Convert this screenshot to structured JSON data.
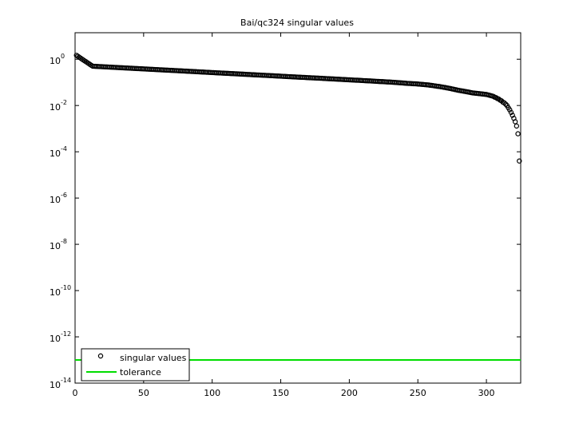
{
  "chart_data": {
    "type": "scatter",
    "title": "Bai/qc324 singular values",
    "xlim": [
      0,
      325
    ],
    "xticks": [
      0,
      50,
      100,
      150,
      200,
      250,
      300
    ],
    "ylim": [
      1e-14,
      14
    ],
    "yscale": "log",
    "yticks": [
      {
        "value": 1e-14,
        "label": "10^-14"
      },
      {
        "value": 1e-12,
        "label": "10^-12"
      },
      {
        "value": 1e-10,
        "label": "10^-10"
      },
      {
        "value": 1e-08,
        "label": "10^-8"
      },
      {
        "value": 1e-06,
        "label": "10^-6"
      },
      {
        "value": 0.0001,
        "label": "10^-4"
      },
      {
        "value": 0.01,
        "label": "10^-2"
      },
      {
        "value": 1,
        "label": "10^0"
      }
    ],
    "legend": "lower left",
    "series": [
      {
        "name": "singular values",
        "color": "#000000",
        "marker": "circle",
        "x": [
          1,
          2,
          3,
          4,
          5,
          6,
          7,
          8,
          9,
          10,
          11,
          12,
          13,
          14,
          15,
          16,
          17,
          18,
          19,
          20,
          21,
          22,
          23,
          24,
          25,
          26,
          27,
          28,
          29,
          30,
          31,
          32,
          33,
          34,
          35,
          36,
          37,
          38,
          39,
          40,
          41,
          42,
          43,
          44,
          45,
          46,
          47,
          48,
          49,
          50,
          51,
          52,
          53,
          54,
          55,
          56,
          57,
          58,
          59,
          60,
          61,
          62,
          63,
          64,
          65,
          66,
          67,
          68,
          69,
          70,
          71,
          72,
          73,
          74,
          75,
          76,
          77,
          78,
          79,
          80,
          81,
          82,
          83,
          84,
          85,
          86,
          87,
          88,
          89,
          90,
          91,
          92,
          93,
          94,
          95,
          96,
          97,
          98,
          99,
          100,
          101,
          102,
          103,
          104,
          105,
          106,
          107,
          108,
          109,
          110,
          111,
          112,
          113,
          114,
          115,
          116,
          117,
          118,
          119,
          120,
          121,
          122,
          123,
          124,
          125,
          126,
          127,
          128,
          129,
          130,
          131,
          132,
          133,
          134,
          135,
          136,
          137,
          138,
          139,
          140,
          141,
          142,
          143,
          144,
          145,
          146,
          147,
          148,
          149,
          150,
          151,
          152,
          153,
          154,
          155,
          156,
          157,
          158,
          159,
          160,
          161,
          162,
          163,
          164,
          165,
          166,
          167,
          168,
          169,
          170,
          171,
          172,
          173,
          174,
          175,
          176,
          177,
          178,
          179,
          180,
          181,
          182,
          183,
          184,
          185,
          186,
          187,
          188,
          189,
          190,
          191,
          192,
          193,
          194,
          195,
          196,
          197,
          198,
          199,
          200,
          201,
          202,
          203,
          204,
          205,
          206,
          207,
          208,
          209,
          210,
          211,
          212,
          213,
          214,
          215,
          216,
          217,
          218,
          219,
          220,
          221,
          222,
          223,
          224,
          225,
          226,
          227,
          228,
          229,
          230,
          231,
          232,
          233,
          234,
          235,
          236,
          237,
          238,
          239,
          240,
          241,
          242,
          243,
          244,
          245,
          246,
          247,
          248,
          249,
          250,
          251,
          252,
          253,
          254,
          255,
          256,
          257,
          258,
          259,
          260,
          261,
          262,
          263,
          264,
          265,
          266,
          267,
          268,
          269,
          270,
          271,
          272,
          273,
          274,
          275,
          276,
          277,
          278,
          279,
          280,
          281,
          282,
          283,
          284,
          285,
          286,
          287,
          288,
          289,
          290,
          291,
          292,
          293,
          294,
          295,
          296,
          297,
          298,
          299,
          300,
          301,
          302,
          303,
          304,
          305,
          306,
          307,
          308,
          309,
          310,
          311,
          312,
          313,
          314,
          315,
          316,
          317,
          318,
          319,
          320,
          321,
          322,
          323,
          324
        ],
        "values": [
          1.48,
          1.35,
          1.23,
          1.12,
          1.02,
          0.93,
          0.85,
          0.78,
          0.71,
          0.65,
          0.59,
          0.54,
          0.5,
          0.496,
          0.493,
          0.489,
          0.486,
          0.482,
          0.479,
          0.475,
          0.472,
          0.468,
          0.465,
          0.462,
          0.458,
          0.455,
          0.452,
          0.448,
          0.445,
          0.442,
          0.439,
          0.435,
          0.432,
          0.429,
          0.426,
          0.423,
          0.42,
          0.417,
          0.414,
          0.411,
          0.408,
          0.405,
          0.402,
          0.399,
          0.396,
          0.394,
          0.391,
          0.388,
          0.385,
          0.382,
          0.38,
          0.377,
          0.374,
          0.371,
          0.369,
          0.366,
          0.364,
          0.361,
          0.358,
          0.356,
          0.353,
          0.351,
          0.348,
          0.346,
          0.343,
          0.341,
          0.338,
          0.336,
          0.334,
          0.331,
          0.329,
          0.326,
          0.324,
          0.322,
          0.319,
          0.317,
          0.315,
          0.312,
          0.31,
          0.308,
          0.306,
          0.303,
          0.301,
          0.299,
          0.297,
          0.295,
          0.293,
          0.291,
          0.288,
          0.286,
          0.284,
          0.282,
          0.28,
          0.278,
          0.276,
          0.274,
          0.272,
          0.27,
          0.268,
          0.266,
          0.264,
          0.262,
          0.26,
          0.258,
          0.256,
          0.255,
          0.253,
          0.251,
          0.249,
          0.247,
          0.246,
          0.244,
          0.242,
          0.24,
          0.239,
          0.237,
          0.235,
          0.234,
          0.232,
          0.23,
          0.228,
          0.227,
          0.225,
          0.223,
          0.222,
          0.22,
          0.219,
          0.217,
          0.215,
          0.214,
          0.212,
          0.211,
          0.209,
          0.208,
          0.206,
          0.205,
          0.203,
          0.202,
          0.201,
          0.199,
          0.198,
          0.196,
          0.195,
          0.194,
          0.192,
          0.191,
          0.189,
          0.188,
          0.187,
          0.185,
          0.184,
          0.182,
          0.181,
          0.18,
          0.178,
          0.177,
          0.176,
          0.175,
          0.173,
          0.172,
          0.171,
          0.169,
          0.168,
          0.167,
          0.166,
          0.165,
          0.164,
          0.163,
          0.161,
          0.16,
          0.159,
          0.158,
          0.157,
          0.156,
          0.155,
          0.154,
          0.153,
          0.152,
          0.151,
          0.15,
          0.148,
          0.147,
          0.146,
          0.145,
          0.144,
          0.143,
          0.142,
          0.141,
          0.14,
          0.139,
          0.138,
          0.137,
          0.136,
          0.135,
          0.134,
          0.133,
          0.132,
          0.131,
          0.13,
          0.129,
          0.128,
          0.127,
          0.126,
          0.125,
          0.124,
          0.124,
          0.123,
          0.122,
          0.121,
          0.12,
          0.119,
          0.118,
          0.117,
          0.116,
          0.116,
          0.115,
          0.114,
          0.113,
          0.112,
          0.111,
          0.11,
          0.109,
          0.108,
          0.108,
          0.107,
          0.106,
          0.105,
          0.104,
          0.104,
          0.103,
          0.102,
          0.101,
          0.1,
          0.099,
          0.098,
          0.097,
          0.096,
          0.095,
          0.094,
          0.093,
          0.092,
          0.091,
          0.09,
          0.09,
          0.089,
          0.088,
          0.087,
          0.087,
          0.086,
          0.085,
          0.084,
          0.083,
          0.082,
          0.081,
          0.08,
          0.079,
          0.078,
          0.077,
          0.075,
          0.074,
          0.073,
          0.071,
          0.07,
          0.068,
          0.067,
          0.066,
          0.064,
          0.063,
          0.061,
          0.06,
          0.058,
          0.057,
          0.055,
          0.054,
          0.052,
          0.051,
          0.049,
          0.048,
          0.046,
          0.045,
          0.044,
          0.043,
          0.042,
          0.041,
          0.04,
          0.039,
          0.038,
          0.037,
          0.036,
          0.035,
          0.0345,
          0.034,
          0.0335,
          0.033,
          0.0325,
          0.032,
          0.0315,
          0.031,
          0.0305,
          0.03,
          0.029,
          0.028,
          0.027,
          0.026,
          0.025,
          0.023,
          0.022,
          0.02,
          0.019,
          0.017,
          0.016,
          0.014,
          0.013,
          0.0115,
          0.01,
          0.008,
          0.0065,
          0.005,
          0.0038,
          0.0028,
          0.002,
          0.0013,
          0.0006,
          4e-05
        ]
      },
      {
        "name": "tolerance",
        "color": "#00dd00",
        "value": 1e-13
      }
    ]
  }
}
